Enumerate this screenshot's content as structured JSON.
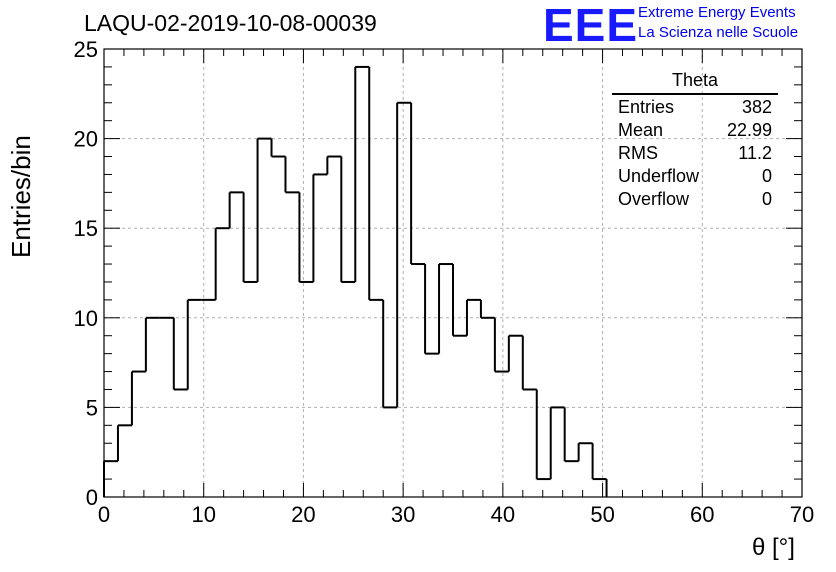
{
  "header": {
    "title": "LAQU-02-2019-10-08-00039",
    "logo_text": "EEE",
    "logo_line1": "Extreme Energy Events",
    "logo_line2": "La Scienza nelle Scuole"
  },
  "stats": {
    "title": "Theta",
    "rows": [
      {
        "label": "Entries",
        "value": "382"
      },
      {
        "label": "Mean",
        "value": "22.99"
      },
      {
        "label": "RMS",
        "value": "11.2"
      },
      {
        "label": "Underflow",
        "value": "0"
      },
      {
        "label": "Overflow",
        "value": "0"
      }
    ]
  },
  "colors": {
    "logo": "#1a1aff",
    "logo_text": "#0000ee",
    "grid": "#b0b0b0",
    "line": "#000000"
  },
  "chart_data": {
    "type": "bar",
    "style": "step-histogram",
    "xlabel": "θ [°]",
    "ylabel": "Entries/bin",
    "xlim": [
      0,
      70
    ],
    "ylim": [
      0,
      25
    ],
    "xticks": [
      0,
      10,
      20,
      30,
      40,
      50,
      60,
      70
    ],
    "yticks": [
      0,
      5,
      10,
      15,
      20,
      25
    ],
    "grid": true,
    "bin_edges": [
      0,
      1.4,
      2.8,
      4.2,
      5.6,
      7,
      8.4,
      9.8,
      11.2,
      12.6,
      14,
      15.4,
      16.8,
      18.2,
      19.6,
      21,
      22.4,
      23.8,
      25.2,
      26.6,
      28,
      29.4,
      30.8,
      32.2,
      33.6,
      35,
      36.4,
      37.8,
      39.2,
      40.6,
      42,
      43.4,
      44.8,
      46.2,
      47.6,
      49,
      50.4
    ],
    "values": [
      2,
      4,
      7,
      10,
      10,
      6,
      11,
      11,
      15,
      17,
      12,
      20,
      19,
      17,
      12,
      18,
      19,
      12,
      24,
      11,
      5,
      22,
      13,
      8,
      13,
      9,
      11,
      10,
      7,
      9,
      6,
      1,
      5,
      2,
      3,
      1
    ]
  }
}
